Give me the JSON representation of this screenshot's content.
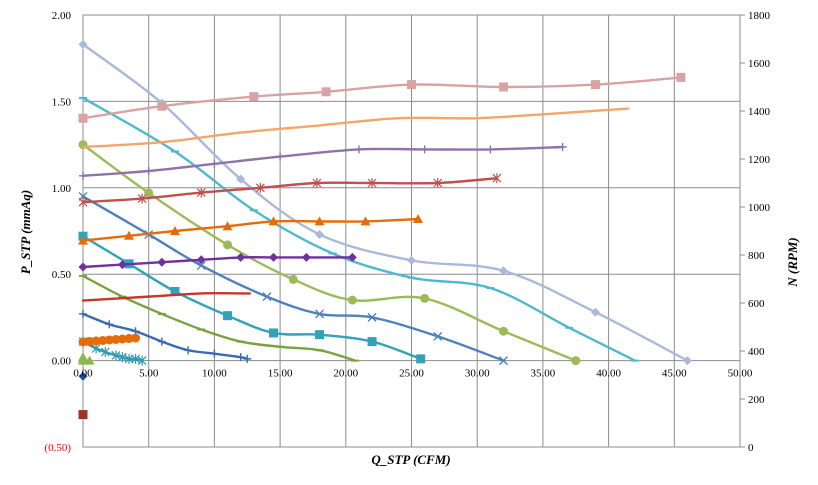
{
  "chart_data": {
    "type": "line",
    "xlabel": "Q_STP (CFM)",
    "ylabel": "P_STP (mmAq)",
    "y2label": "N (RPM)",
    "xlim": [
      0,
      50
    ],
    "ylim": [
      -0.5,
      2.0
    ],
    "y2lim": [
      0,
      1800
    ],
    "grid": true,
    "x_ticks": [
      "0.00",
      "5.00",
      "10.00",
      "15.00",
      "20.00",
      "25.00",
      "30.00",
      "35.00",
      "40.00",
      "45.00",
      "50.00"
    ],
    "y_ticks": [
      "(0.50)",
      "0.00",
      "0.50",
      "1.00",
      "1.50",
      "2.00"
    ],
    "y2_ticks": [
      "0",
      "200",
      "400",
      "600",
      "800",
      "1000",
      "1200",
      "1400",
      "1600",
      "1800"
    ],
    "pq_curves": [
      {
        "color": "#a9b8dc",
        "marker": "diamond",
        "x": [
          0,
          6,
          12,
          18,
          25,
          32,
          39,
          46
        ],
        "y": [
          1.83,
          1.49,
          1.05,
          0.73,
          0.58,
          0.52,
          0.28,
          0.0
        ]
      },
      {
        "color": "#4fb8d0",
        "marker": "dash",
        "x": [
          0,
          7,
          13,
          19,
          25,
          31,
          37,
          42
        ],
        "y": [
          1.52,
          1.21,
          0.87,
          0.62,
          0.48,
          0.42,
          0.19,
          0.0
        ]
      },
      {
        "color": "#9bbb59",
        "marker": "circle",
        "x": [
          0,
          5,
          11,
          16,
          20.5,
          26,
          32,
          37.5
        ],
        "y": [
          1.25,
          0.97,
          0.67,
          0.47,
          0.35,
          0.36,
          0.17,
          0.0
        ]
      },
      {
        "color": "#4f81bd",
        "marker": "x",
        "x": [
          0,
          5,
          9,
          14,
          18,
          22,
          27,
          32
        ],
        "y": [
          0.95,
          0.73,
          0.55,
          0.37,
          0.27,
          0.25,
          0.14,
          0.0
        ]
      },
      {
        "color": "#31a2b7",
        "marker": "square",
        "x": [
          0,
          3.5,
          7,
          11,
          14.5,
          18,
          22,
          25.7
        ],
        "y": [
          0.72,
          0.56,
          0.4,
          0.26,
          0.16,
          0.15,
          0.11,
          0.01
        ]
      },
      {
        "color": "#7aa33d",
        "marker": "dash",
        "x": [
          0,
          3,
          6,
          9,
          12,
          15,
          18,
          20.7
        ],
        "y": [
          0.49,
          0.37,
          0.27,
          0.18,
          0.11,
          0.08,
          0.06,
          0.0
        ]
      },
      {
        "color": "#3a6bb0",
        "marker": "plus",
        "x": [
          0,
          2,
          4,
          6,
          8,
          10,
          12,
          12.5
        ],
        "y": [
          0.27,
          0.21,
          0.17,
          0.11,
          0.06,
          0.04,
          0.02,
          0.01
        ]
      },
      {
        "color": "#2e9bb3",
        "marker": "star",
        "x": [
          0,
          1,
          1.7,
          2.5,
          3,
          3.5,
          4,
          4.5
        ],
        "y": [
          0.11,
          0.07,
          0.05,
          0.03,
          0.02,
          0.01,
          0.01,
          0.0
        ]
      },
      {
        "color": "#8cb850",
        "marker": "triangle",
        "x": [
          0,
          0,
          0,
          0.5
        ],
        "y": [
          0.02,
          0.01,
          0.0,
          0.0
        ]
      }
    ],
    "rpm_curves": [
      {
        "color": "#d9a3a3",
        "marker": "square",
        "x": [
          0,
          6,
          13,
          18.5,
          25,
          32,
          39,
          45.5
        ],
        "y": [
          1370,
          1420,
          1460,
          1480,
          1510,
          1500,
          1510,
          1540
        ]
      },
      {
        "color": "#f4a66a",
        "marker": "none",
        "x": [
          0,
          6,
          12,
          18,
          24,
          30,
          36,
          41.5
        ],
        "y": [
          1250,
          1270,
          1310,
          1340,
          1370,
          1370,
          1390,
          1410
        ]
      },
      {
        "color": "#8f73a8",
        "marker": "plus",
        "x": [
          0,
          5,
          10,
          15,
          21,
          26,
          31,
          36.5
        ],
        "y": [
          1130,
          1150,
          1180,
          1210,
          1240,
          1240,
          1240,
          1250
        ]
      },
      {
        "color": "#c0504d",
        "marker": "star",
        "x": [
          0,
          4.5,
          9,
          13.5,
          17.8,
          22,
          27,
          31.5
        ],
        "y": [
          1020,
          1035,
          1060,
          1080,
          1100,
          1100,
          1100,
          1120
        ]
      },
      {
        "color": "#e46c0a",
        "marker": "triangle",
        "x": [
          0,
          3.5,
          7,
          11,
          14.5,
          18,
          21.5,
          25.5
        ],
        "y": [
          860,
          880,
          900,
          920,
          940,
          940,
          940,
          950
        ]
      },
      {
        "color": "#7030a0",
        "marker": "diamond",
        "x": [
          0,
          3,
          6,
          9,
          12,
          14.5,
          17,
          20.5
        ],
        "y": [
          750,
          760,
          770,
          780,
          790,
          790,
          790,
          790
        ]
      },
      {
        "color": "#c0392b",
        "marker": "none",
        "x": [
          0,
          3,
          6,
          9,
          12,
          12.7
        ],
        "y": [
          610,
          620,
          630,
          640,
          640,
          640
        ]
      },
      {
        "color": "#e46c0a",
        "marker": "circle",
        "x": [
          0,
          0.5,
          1,
          1.5,
          2,
          2.5,
          3,
          3.5,
          4
        ],
        "y": [
          438,
          440,
          442,
          444,
          446,
          448,
          450,
          452,
          454
        ]
      },
      {
        "color": "#1f4e9c",
        "marker": "diamond",
        "x": [
          0
        ],
        "y": [
          295
        ]
      },
      {
        "color": "#a0302a",
        "marker": "square",
        "x": [
          0
        ],
        "y": [
          135
        ]
      }
    ]
  }
}
